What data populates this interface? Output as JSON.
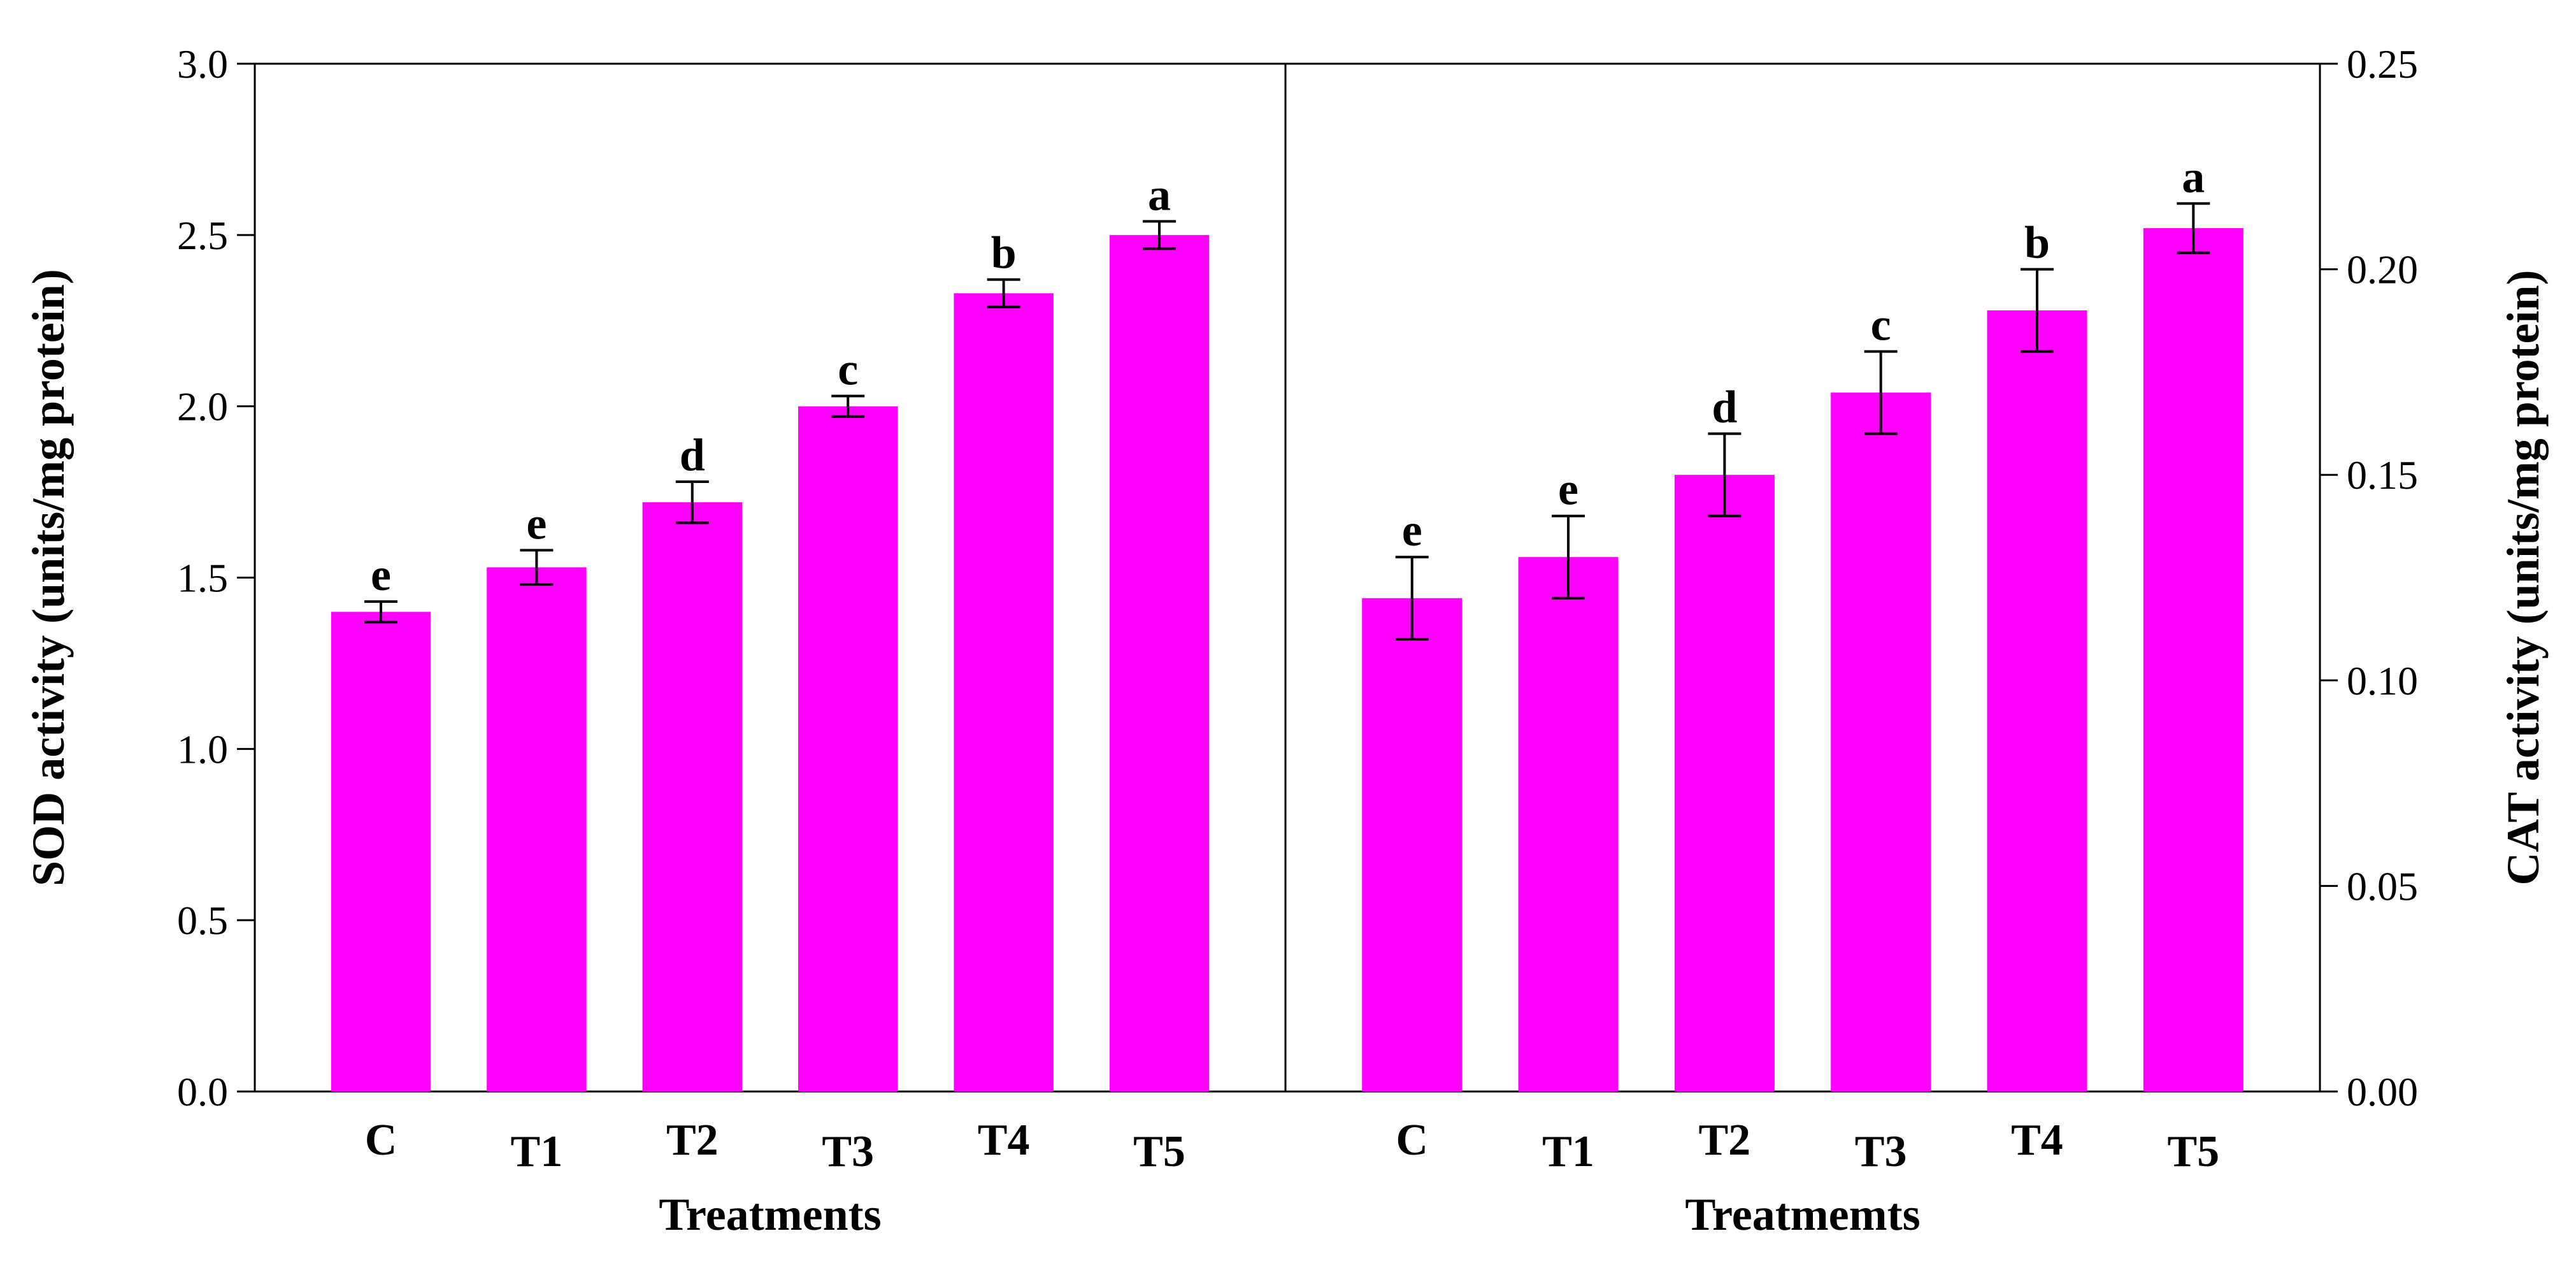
{
  "chart_data": [
    {
      "type": "bar",
      "panel": "left",
      "categories": [
        "C",
        "T1",
        "T2",
        "T3",
        "T4",
        "T5"
      ],
      "values": [
        1.4,
        1.53,
        1.72,
        2.0,
        2.33,
        2.5
      ],
      "errors": [
        0.03,
        0.05,
        0.06,
        0.03,
        0.04,
        0.04
      ],
      "significance": [
        "e",
        "e",
        "d",
        "c",
        "b",
        "a"
      ],
      "xlabel": "Treatments",
      "ylabel": "SOD activity (units/mg protein)",
      "ylim": [
        0,
        3.0
      ],
      "yticks": [
        "0.0",
        "0.5",
        "1.0",
        "1.5",
        "2.0",
        "2.5",
        "3.0"
      ],
      "y_axis_side": "left",
      "bar_color": "#ff00ff",
      "grid": false
    },
    {
      "type": "bar",
      "panel": "right",
      "categories": [
        "C",
        "T1",
        "T2",
        "T3",
        "T4",
        "T5"
      ],
      "values": [
        0.12,
        0.13,
        0.15,
        0.17,
        0.19,
        0.21
      ],
      "errors": [
        0.01,
        0.01,
        0.01,
        0.01,
        0.01,
        0.006
      ],
      "significance": [
        "e",
        "e",
        "d",
        "c",
        "b",
        "a"
      ],
      "xlabel": "Treatmemts",
      "ylabel": "CAT activity (units/mg protein)",
      "ylim": [
        0,
        0.25
      ],
      "yticks": [
        "0.00",
        "0.05",
        "0.10",
        "0.15",
        "0.20",
        "0.25"
      ],
      "y_axis_side": "right",
      "bar_color": "#ff00ff",
      "grid": false
    }
  ]
}
